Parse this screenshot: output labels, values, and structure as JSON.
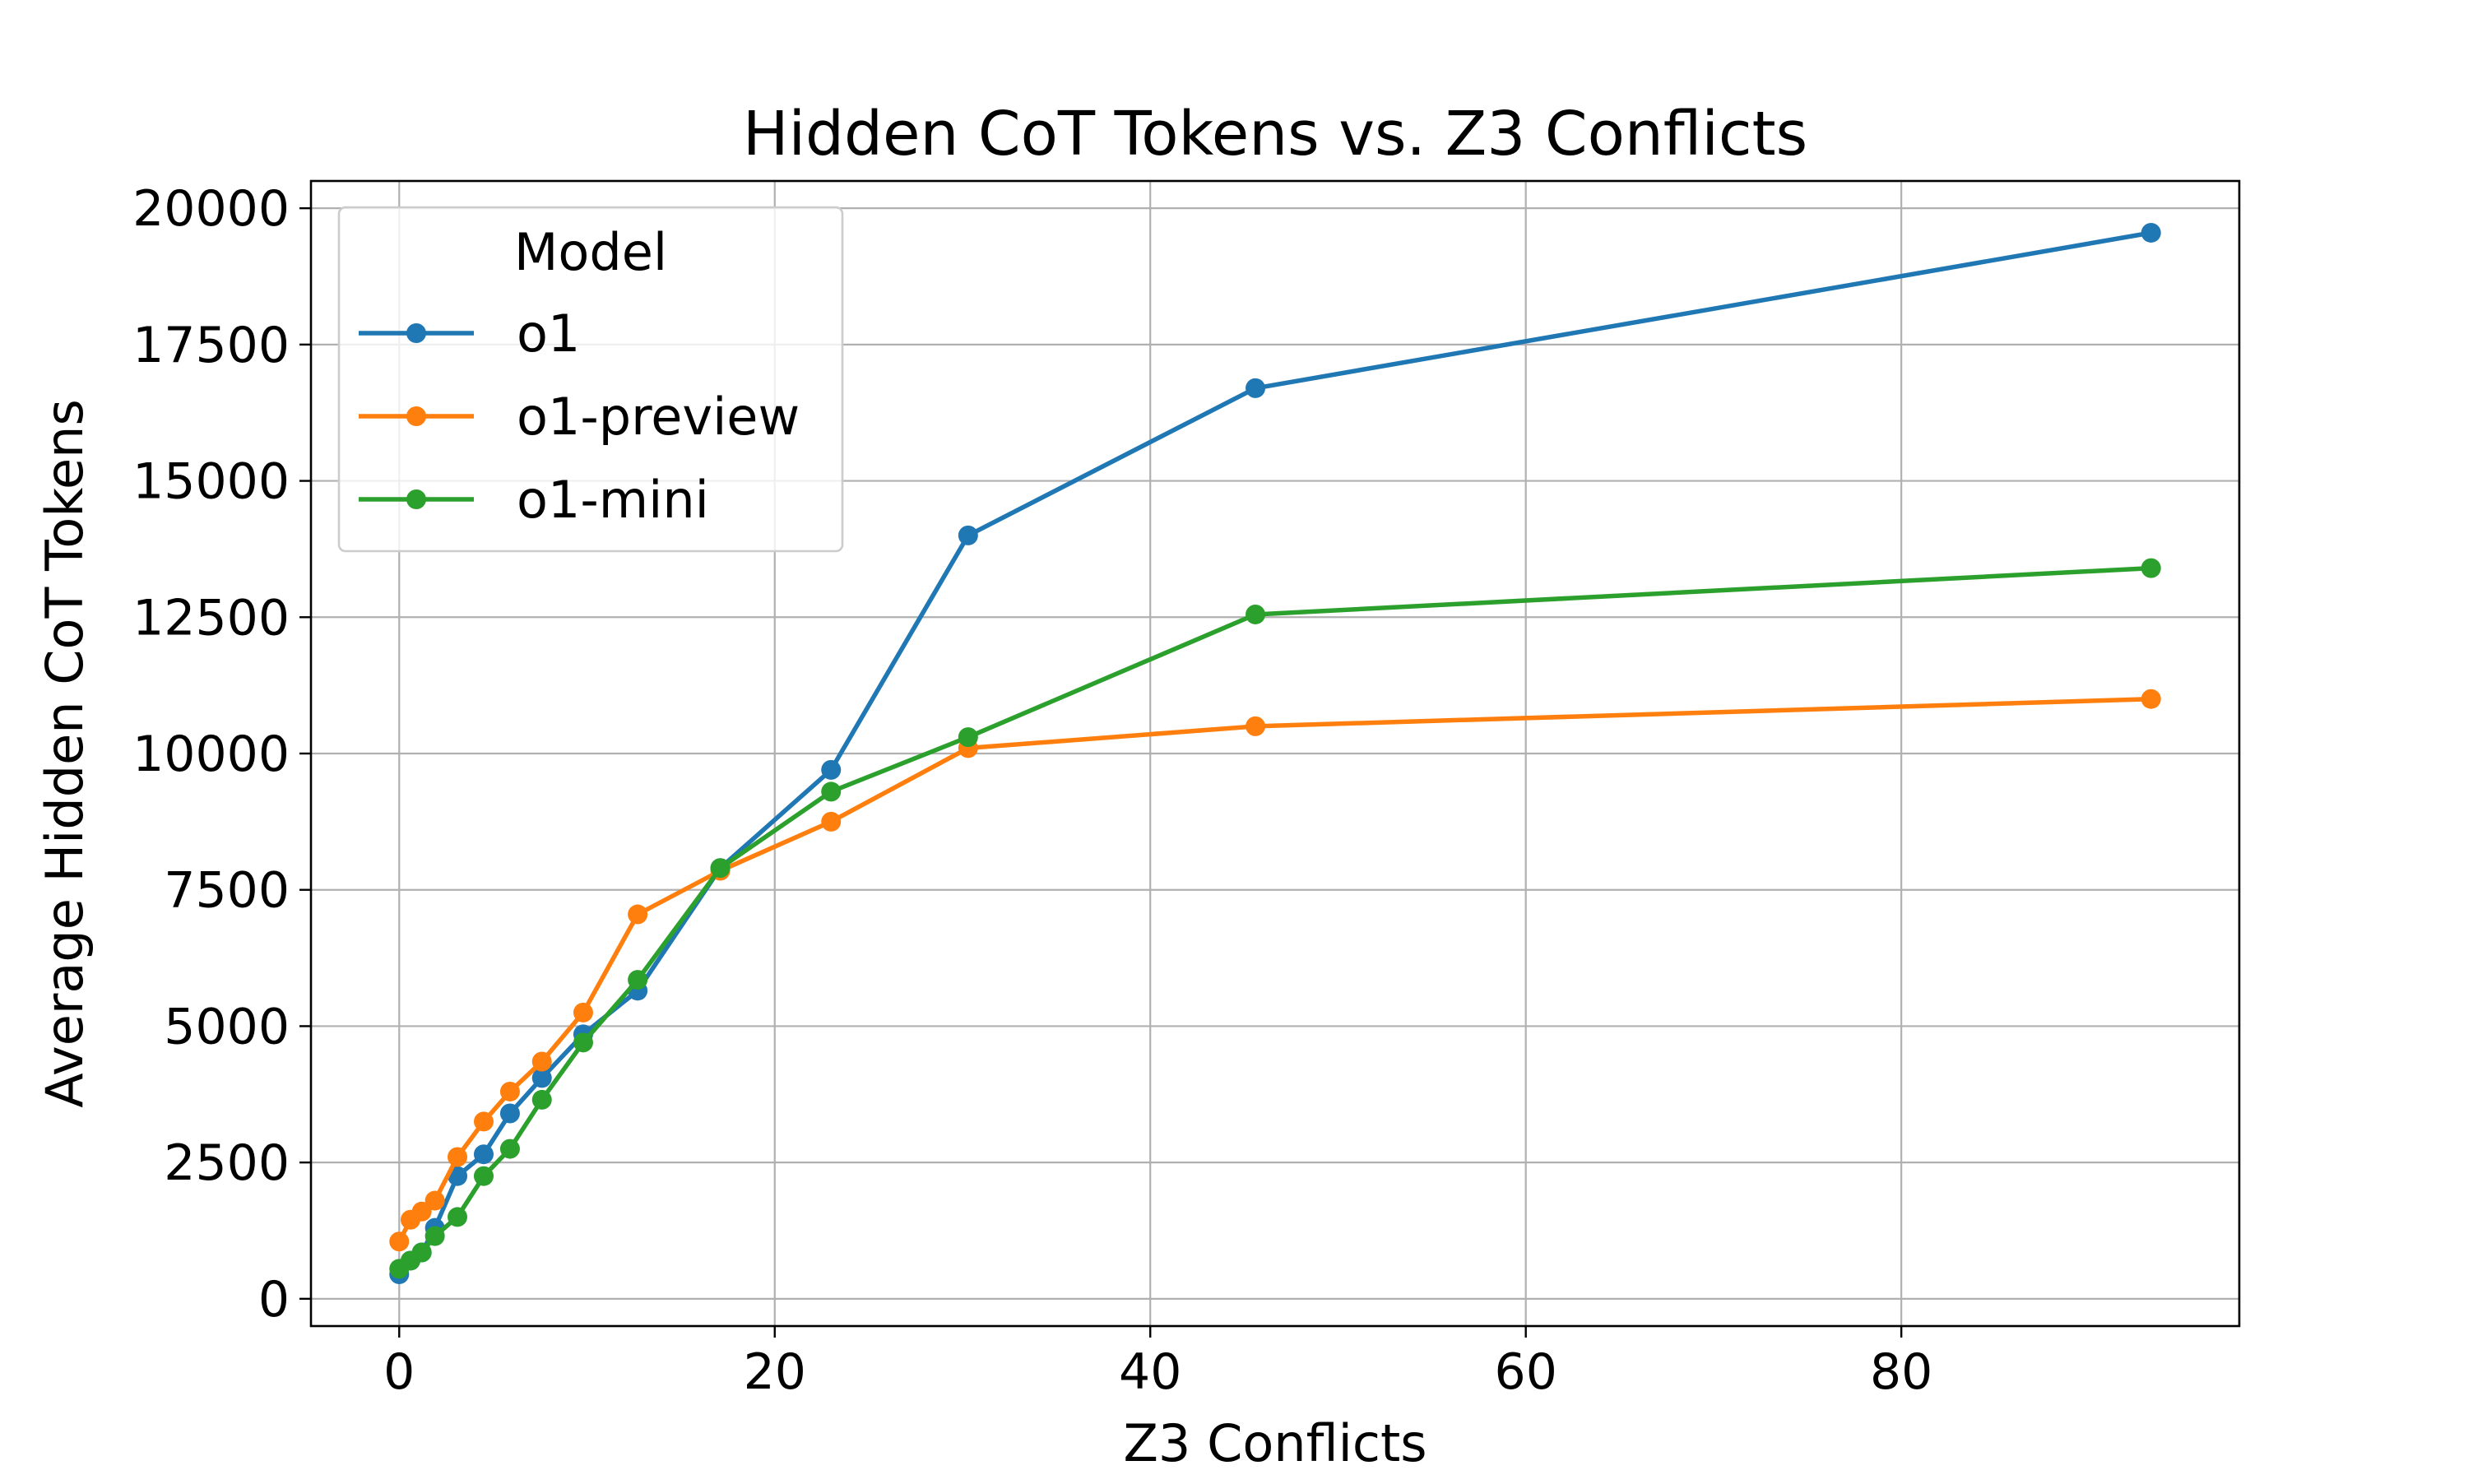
{
  "chart_data": {
    "type": "line",
    "title": "Hidden CoT Tokens vs. Z3 Conflicts",
    "xlabel": "Z3 Conflicts",
    "ylabel": "Average Hidden CoT Tokens",
    "xlim": [
      -4.7,
      98
    ],
    "ylim": [
      -500,
      20500
    ],
    "xticks": [
      0,
      20,
      40,
      60,
      80
    ],
    "yticks": [
      0,
      2500,
      5000,
      7500,
      10000,
      12500,
      15000,
      17500,
      20000
    ],
    "grid": true,
    "legend": {
      "title": "Model",
      "position": "top-left"
    },
    "series": [
      {
        "name": "o1",
        "color": "#1f77b4",
        "points": [
          [
            0,
            450
          ],
          [
            0.6,
            700
          ],
          [
            1.2,
            850
          ],
          [
            1.9,
            1300
          ],
          [
            3.1,
            2250
          ],
          [
            4.5,
            2650
          ],
          [
            5.9,
            3400
          ],
          [
            7.6,
            4050
          ],
          [
            9.8,
            4850
          ],
          [
            12.7,
            5650
          ],
          [
            17.1,
            7900
          ],
          [
            23,
            9700
          ],
          [
            30.3,
            14000
          ],
          [
            45.6,
            16700
          ],
          [
            93.3,
            19550
          ]
        ]
      },
      {
        "name": "o1-preview",
        "color": "#ff7f0e",
        "points": [
          [
            0,
            1050
          ],
          [
            0.6,
            1450
          ],
          [
            1.2,
            1600
          ],
          [
            1.9,
            1800
          ],
          [
            3.1,
            2600
          ],
          [
            4.5,
            3250
          ],
          [
            5.9,
            3800
          ],
          [
            7.6,
            4350
          ],
          [
            9.8,
            5250
          ],
          [
            12.7,
            7050
          ],
          [
            17.1,
            7850
          ],
          [
            23,
            8750
          ],
          [
            30.3,
            10100
          ],
          [
            45.6,
            10500
          ],
          [
            93.3,
            11000
          ]
        ]
      },
      {
        "name": "o1-mini",
        "color": "#2ca02c",
        "points": [
          [
            0,
            550
          ],
          [
            0.6,
            700
          ],
          [
            1.2,
            850
          ],
          [
            1.9,
            1150
          ],
          [
            3.1,
            1500
          ],
          [
            4.5,
            2250
          ],
          [
            5.9,
            2750
          ],
          [
            7.6,
            3650
          ],
          [
            9.8,
            4700
          ],
          [
            12.7,
            5850
          ],
          [
            17.1,
            7900
          ],
          [
            23,
            9300
          ],
          [
            30.3,
            10300
          ],
          [
            45.6,
            12550
          ],
          [
            93.3,
            13400
          ]
        ]
      }
    ]
  }
}
